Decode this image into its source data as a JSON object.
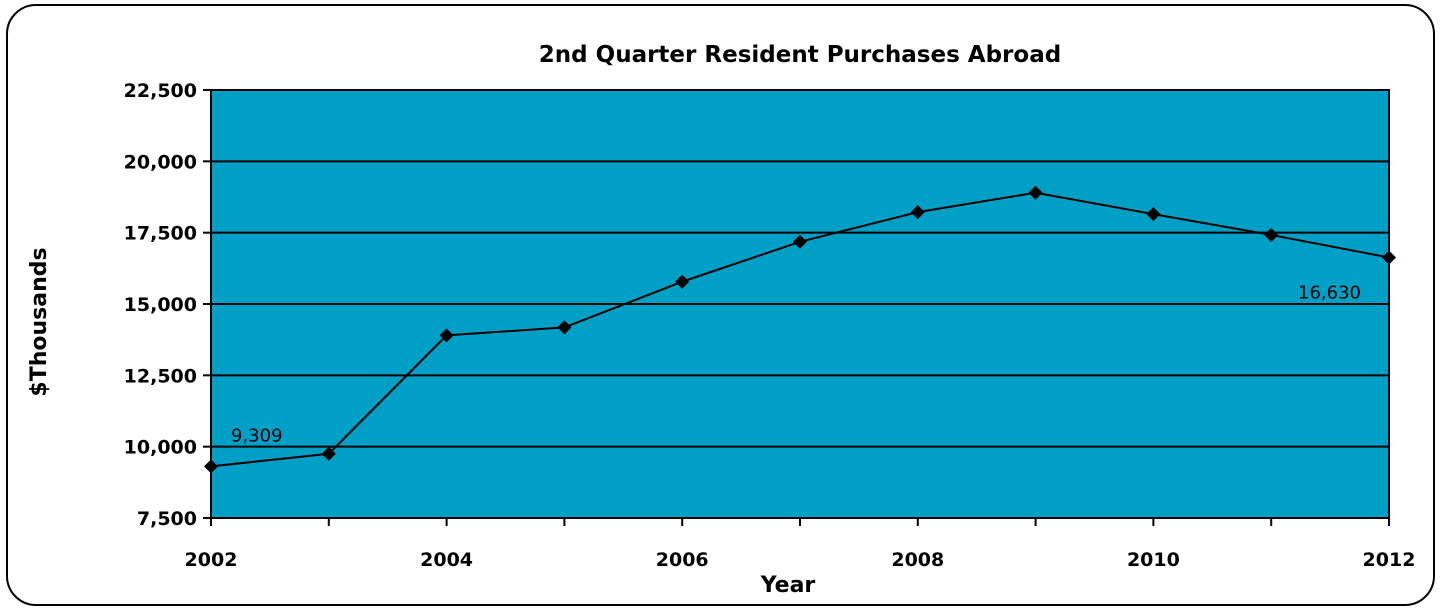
{
  "chart_data": {
    "type": "line",
    "title": "2nd Quarter Resident Purchases Abroad",
    "xlabel": "Year",
    "ylabel": "$Thousands",
    "x": [
      2002,
      2003,
      2004,
      2005,
      2006,
      2007,
      2008,
      2009,
      2010,
      2011,
      2012
    ],
    "x_tick_labels": [
      "2002",
      "2004",
      "2006",
      "2008",
      "2010",
      "2012"
    ],
    "y_tick_labels": [
      "7,500",
      "10,000",
      "12,500",
      "15,000",
      "17,500",
      "20,000",
      "22,500"
    ],
    "ylim": [
      7500,
      22500
    ],
    "grid": true,
    "series": [
      {
        "values": [
          9309,
          9750,
          13900,
          14180,
          15780,
          17180,
          18220,
          18900,
          18150,
          17420,
          16630
        ]
      }
    ],
    "data_labels": [
      {
        "index": 0,
        "text": "9,309"
      },
      {
        "index": 10,
        "text": "16,630"
      }
    ],
    "colors": {
      "plot_background": "#00A0C6",
      "line": "#000000",
      "marker": "#000000",
      "grid": "#000000"
    }
  }
}
